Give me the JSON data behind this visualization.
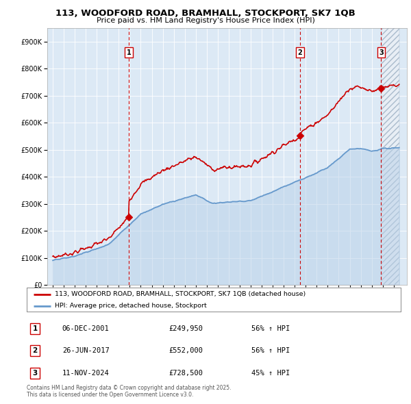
{
  "title": "113, WOODFORD ROAD, BRAMHALL, STOCKPORT, SK7 1QB",
  "subtitle": "Price paid vs. HM Land Registry's House Price Index (HPI)",
  "red_label": "113, WOODFORD ROAD, BRAMHALL, STOCKPORT, SK7 1QB (detached house)",
  "blue_label": "HPI: Average price, detached house, Stockport",
  "transactions": [
    {
      "num": 1,
      "date": "06-DEC-2001",
      "price": 249950,
      "pct": "56%",
      "dir": "↑",
      "ref": "HPI",
      "year_x": 2001.92
    },
    {
      "num": 2,
      "date": "26-JUN-2017",
      "price": 552000,
      "pct": "56%",
      "dir": "↑",
      "ref": "HPI",
      "year_x": 2017.48
    },
    {
      "num": 3,
      "date": "11-NOV-2024",
      "price": 728500,
      "pct": "45%",
      "dir": "↑",
      "ref": "HPI",
      "year_x": 2024.86
    }
  ],
  "footnote": "Contains HM Land Registry data © Crown copyright and database right 2025.\nThis data is licensed under the Open Government Licence v3.0.",
  "ylim": [
    0,
    950000
  ],
  "xlim_start": 1994.5,
  "xlim_end": 2027.2,
  "bg_color": "#ffffff",
  "chart_bg_color": "#dce9f5",
  "grid_color": "#ffffff",
  "red_color": "#cc0000",
  "blue_color": "#6699cc",
  "hatch_bg_color": "#e8eef5"
}
